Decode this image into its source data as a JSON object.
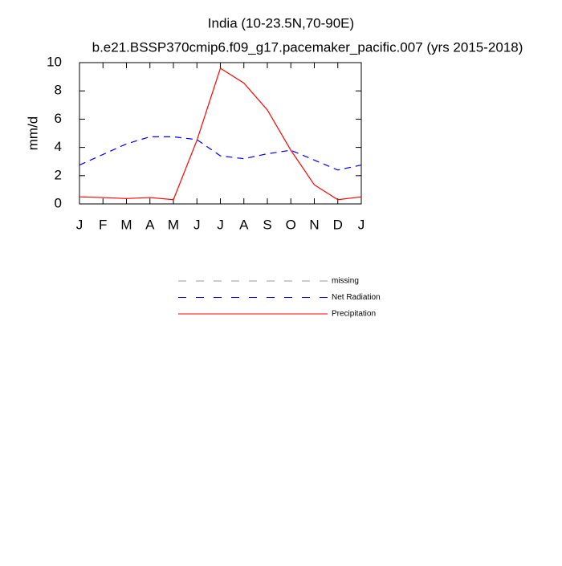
{
  "chart_data": {
    "type": "line",
    "title": "India (10-23.5N,70-90E)",
    "subtitle": "b.e21.BSSP370cmip6.f09_g17.pacemaker_pacific.007 (yrs 2015-2018)",
    "y_label": "mm/d",
    "categories": [
      "J",
      "F",
      "M",
      "A",
      "M",
      "J",
      "J",
      "A",
      "S",
      "O",
      "N",
      "D",
      "J"
    ],
    "series": [
      {
        "name": "missing",
        "color": "#999999",
        "dash": true,
        "values": [
          null,
          null,
          null,
          null,
          null,
          null,
          null,
          null,
          null,
          null,
          null,
          null,
          null
        ]
      },
      {
        "name": "Net Radiation",
        "color": "#0000ff",
        "dash": true,
        "values": [
          2.75,
          3.5,
          4.25,
          4.75,
          4.75,
          4.55,
          3.4,
          3.2,
          3.55,
          3.8,
          3.1,
          2.4,
          2.75
        ]
      },
      {
        "name": "Precipitation",
        "color": "#ff0000",
        "dash": false,
        "values": [
          0.5,
          0.45,
          0.38,
          0.45,
          0.3,
          4.5,
          9.6,
          8.55,
          6.65,
          3.8,
          1.35,
          0.3,
          0.5
        ]
      }
    ],
    "ylim": [
      0,
      10
    ],
    "yticks": [
      0,
      2,
      4,
      6,
      8,
      10
    ]
  }
}
